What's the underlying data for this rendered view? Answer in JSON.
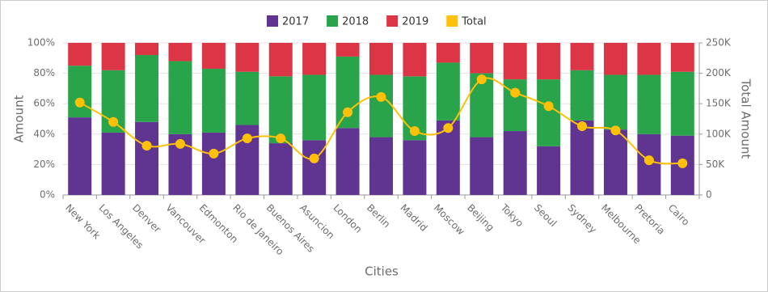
{
  "chart_data": {
    "type": "bar",
    "stacked": "percent",
    "x_label": "Cities",
    "y_label": "Amount",
    "y2_label": "Total Amount",
    "categories": [
      "New York",
      "Los Angeles",
      "Denver",
      "Vancouver",
      "Edmonton",
      "Rio de Janeiro",
      "Buenos Aires",
      "Asuncion",
      "London",
      "Berlin",
      "Madrid",
      "Moscow",
      "Beijing",
      "Tokyo",
      "Seoul",
      "Sydney",
      "Melbourne",
      "Pretoria",
      "Cairo"
    ],
    "series": [
      {
        "name": "2017",
        "color": "#5f3591",
        "values": [
          51,
          41,
          48,
          40,
          41,
          46,
          34,
          36,
          44,
          38,
          36,
          49,
          38,
          42,
          32,
          49,
          43,
          40,
          39
        ]
      },
      {
        "name": "2018",
        "color": "#2aa44a",
        "values": [
          34,
          41,
          44,
          48,
          42,
          35,
          44,
          43,
          47,
          41,
          42,
          38,
          42,
          34,
          44,
          33,
          36,
          39,
          42
        ]
      },
      {
        "name": "2019",
        "color": "#dc3545",
        "values": [
          15,
          18,
          8,
          12,
          17,
          19,
          22,
          21,
          9,
          21,
          22,
          13,
          20,
          24,
          24,
          18,
          21,
          21,
          19
        ]
      },
      {
        "name": "Total",
        "color": "#ffc107",
        "type": "line",
        "axis": "y2",
        "values": [
          152000,
          120000,
          81000,
          84000,
          68000,
          93000,
          93000,
          60000,
          136000,
          161000,
          105000,
          110000,
          190000,
          168000,
          146000,
          113000,
          106000,
          57000,
          52000
        ]
      }
    ],
    "ylim": [
      0,
      100
    ],
    "yticks": [
      {
        "value": 0,
        "label": "0%"
      },
      {
        "value": 20,
        "label": "20%"
      },
      {
        "value": 40,
        "label": "40%"
      },
      {
        "value": 60,
        "label": "60%"
      },
      {
        "value": 80,
        "label": "80%"
      },
      {
        "value": 100,
        "label": "100%"
      }
    ],
    "y2lim": [
      0,
      250000
    ],
    "y2ticks": [
      0,
      {
        "value": 50000,
        "label": "50K"
      },
      {
        "value": 100000,
        "label": "100K"
      },
      {
        "value": 150000,
        "label": "150K"
      },
      {
        "value": 200000,
        "label": "200K"
      },
      {
        "value": 250000,
        "label": "250K"
      }
    ],
    "grid": true,
    "legend": "top"
  }
}
